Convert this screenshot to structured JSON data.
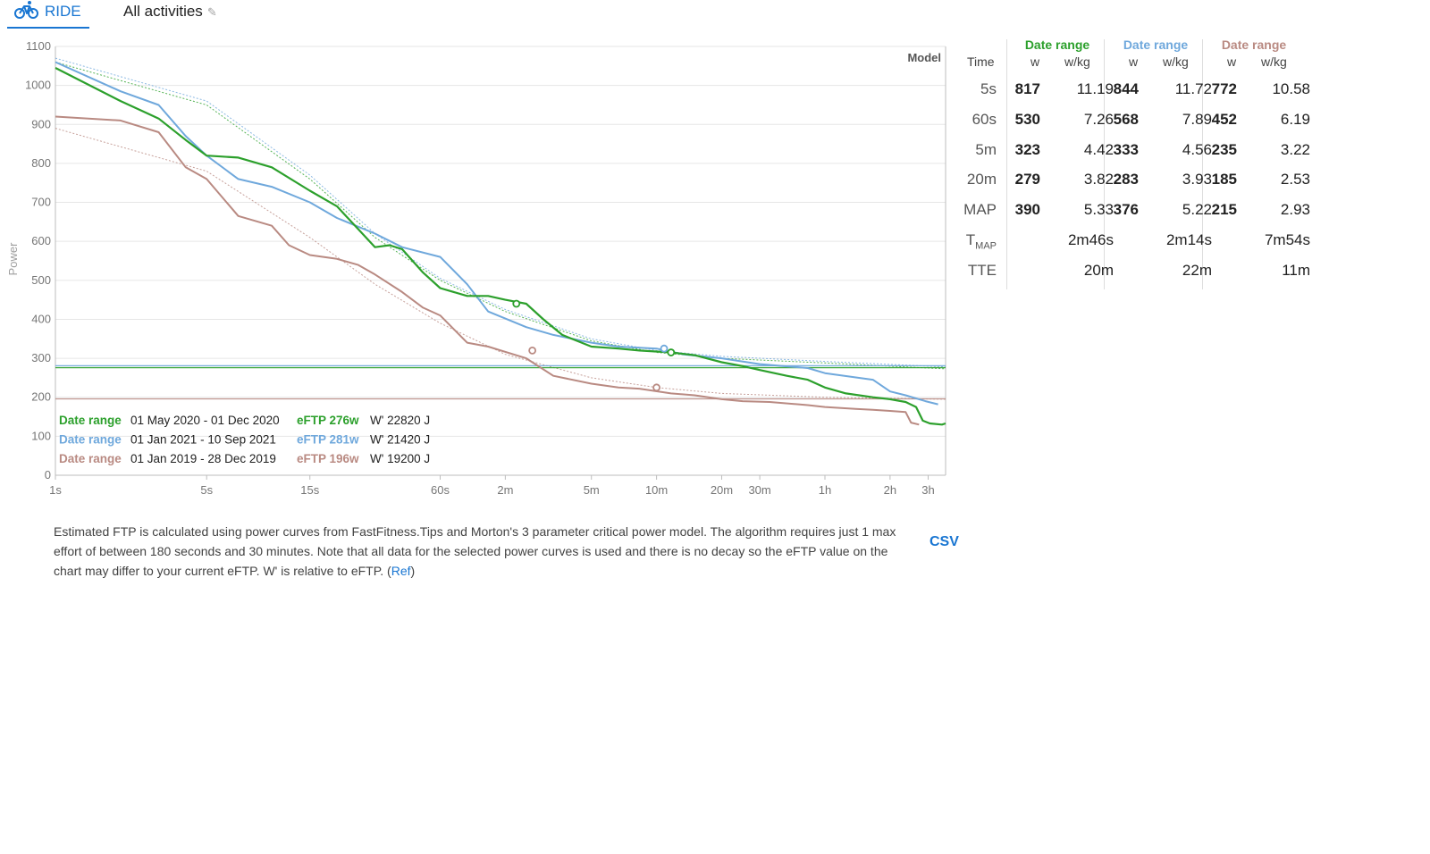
{
  "tabs": {
    "ride_label": "RIDE",
    "activities_label": "All activities"
  },
  "colors": {
    "series1": "#2ca02c",
    "series2": "#6fa8dc",
    "series3": "#b98a82",
    "accent": "#1976d2"
  },
  "chart_data": {
    "type": "line",
    "ylabel": "Power",
    "ylim": [
      0,
      1100
    ],
    "y_ticks": [
      0,
      100,
      200,
      300,
      400,
      500,
      600,
      700,
      800,
      900,
      1000,
      1100
    ],
    "x_scale": "log",
    "x_unit": "seconds",
    "xlim": [
      1,
      13000
    ],
    "x_ticks": [
      {
        "s": 1,
        "label": "1s"
      },
      {
        "s": 5,
        "label": "5s"
      },
      {
        "s": 15,
        "label": "15s"
      },
      {
        "s": 60,
        "label": "60s"
      },
      {
        "s": 120,
        "label": "2m"
      },
      {
        "s": 300,
        "label": "5m"
      },
      {
        "s": 600,
        "label": "10m"
      },
      {
        "s": 1200,
        "label": "20m"
      },
      {
        "s": 1800,
        "label": "30m"
      },
      {
        "s": 3600,
        "label": "1h"
      },
      {
        "s": 7200,
        "label": "2h"
      },
      {
        "s": 10800,
        "label": "3h"
      }
    ],
    "model_label": "Model",
    "series": [
      {
        "name": "Date range",
        "dates": "01 May 2020  - 01 Dec 2020",
        "eftp_label": "eFTP 276w",
        "w_prime_label": "W' 22820 J",
        "color": "#2ca02c",
        "eftp": 276,
        "points": [
          [
            1,
            1045
          ],
          [
            2,
            960
          ],
          [
            3,
            915
          ],
          [
            4,
            860
          ],
          [
            5,
            820
          ],
          [
            7,
            815
          ],
          [
            10,
            790
          ],
          [
            15,
            730
          ],
          [
            20,
            690
          ],
          [
            30,
            585
          ],
          [
            35,
            590
          ],
          [
            40,
            580
          ],
          [
            50,
            520
          ],
          [
            60,
            480
          ],
          [
            80,
            460
          ],
          [
            100,
            460
          ],
          [
            120,
            450
          ],
          [
            150,
            440
          ],
          [
            180,
            400
          ],
          [
            220,
            360
          ],
          [
            300,
            330
          ],
          [
            400,
            325
          ],
          [
            500,
            320
          ],
          [
            700,
            315
          ],
          [
            900,
            308
          ],
          [
            1200,
            290
          ],
          [
            1500,
            280
          ],
          [
            1800,
            270
          ],
          [
            2400,
            255
          ],
          [
            3000,
            245
          ],
          [
            3600,
            225
          ],
          [
            4500,
            210
          ],
          [
            6000,
            200
          ],
          [
            7200,
            195
          ],
          [
            8500,
            188
          ],
          [
            9500,
            175
          ],
          [
            10200,
            140
          ],
          [
            11000,
            133
          ],
          [
            12500,
            130
          ],
          [
            13000,
            133
          ]
        ],
        "marker_points": [
          [
            135,
            440
          ],
          [
            700,
            315
          ]
        ],
        "model_points": [
          [
            1,
            1060
          ],
          [
            5,
            950
          ],
          [
            15,
            760
          ],
          [
            30,
            610
          ],
          [
            60,
            500
          ],
          [
            120,
            420
          ],
          [
            300,
            345
          ],
          [
            600,
            315
          ],
          [
            1200,
            300
          ],
          [
            3600,
            288
          ],
          [
            13000,
            273
          ]
        ]
      },
      {
        "name": "Date range",
        "dates": "01 Jan 2021  - 10 Sep 2021",
        "eftp_label": "eFTP 281w",
        "w_prime_label": "W' 21420 J",
        "color": "#6fa8dc",
        "eftp": 281,
        "points": [
          [
            1,
            1060
          ],
          [
            2,
            985
          ],
          [
            3,
            950
          ],
          [
            4,
            870
          ],
          [
            5,
            820
          ],
          [
            7,
            760
          ],
          [
            10,
            740
          ],
          [
            15,
            700
          ],
          [
            20,
            660
          ],
          [
            30,
            620
          ],
          [
            40,
            585
          ],
          [
            60,
            560
          ],
          [
            80,
            490
          ],
          [
            100,
            420
          ],
          [
            150,
            380
          ],
          [
            200,
            360
          ],
          [
            300,
            340
          ],
          [
            400,
            330
          ],
          [
            600,
            325
          ],
          [
            800,
            310
          ],
          [
            1200,
            300
          ],
          [
            1800,
            285
          ],
          [
            3000,
            275
          ],
          [
            3600,
            262
          ],
          [
            6000,
            245
          ],
          [
            7200,
            215
          ],
          [
            8500,
            205
          ],
          [
            10500,
            190
          ],
          [
            12000,
            182
          ]
        ],
        "marker_points": [
          [
            650,
            325
          ]
        ],
        "model_points": [
          [
            1,
            1070
          ],
          [
            5,
            960
          ],
          [
            15,
            770
          ],
          [
            30,
            620
          ],
          [
            60,
            505
          ],
          [
            120,
            425
          ],
          [
            300,
            350
          ],
          [
            600,
            320
          ],
          [
            1200,
            305
          ],
          [
            3600,
            292
          ],
          [
            13000,
            278
          ]
        ]
      },
      {
        "name": "Date range",
        "dates": "01 Jan 2019  - 28 Dec 2019",
        "eftp_label": "eFTP 196w",
        "w_prime_label": "W' 19200 J",
        "color": "#b98a82",
        "eftp": 196,
        "points": [
          [
            1,
            920
          ],
          [
            2,
            910
          ],
          [
            3,
            880
          ],
          [
            4,
            790
          ],
          [
            5,
            760
          ],
          [
            7,
            665
          ],
          [
            10,
            640
          ],
          [
            12,
            590
          ],
          [
            15,
            565
          ],
          [
            20,
            555
          ],
          [
            25,
            540
          ],
          [
            30,
            515
          ],
          [
            40,
            470
          ],
          [
            50,
            430
          ],
          [
            60,
            410
          ],
          [
            80,
            340
          ],
          [
            100,
            330
          ],
          [
            150,
            300
          ],
          [
            200,
            255
          ],
          [
            300,
            235
          ],
          [
            400,
            225
          ],
          [
            500,
            222
          ],
          [
            700,
            210
          ],
          [
            900,
            205
          ],
          [
            1200,
            195
          ],
          [
            1500,
            190
          ],
          [
            2000,
            188
          ],
          [
            3000,
            180
          ],
          [
            3600,
            175
          ],
          [
            5000,
            170
          ],
          [
            6000,
            168
          ],
          [
            7200,
            165
          ],
          [
            8500,
            162
          ],
          [
            9000,
            135
          ],
          [
            9800,
            130
          ]
        ],
        "marker_points": [
          [
            160,
            320
          ],
          [
            600,
            225
          ]
        ],
        "model_points": [
          [
            1,
            890
          ],
          [
            5,
            780
          ],
          [
            15,
            610
          ],
          [
            30,
            490
          ],
          [
            60,
            390
          ],
          [
            120,
            310
          ],
          [
            300,
            250
          ],
          [
            600,
            225
          ],
          [
            1200,
            210
          ],
          [
            3600,
            200
          ],
          [
            13000,
            195
          ]
        ]
      }
    ]
  },
  "table": {
    "time_header": "Time",
    "w_header": "w",
    "wkg_header": "w/kg",
    "column_titles": [
      "Date range",
      "Date range",
      "Date range"
    ],
    "rows": [
      {
        "label": "5s",
        "vals": [
          [
            "817",
            "11.19"
          ],
          [
            "844",
            "11.72"
          ],
          [
            "772",
            "10.58"
          ]
        ]
      },
      {
        "label": "60s",
        "vals": [
          [
            "530",
            "7.26"
          ],
          [
            "568",
            "7.89"
          ],
          [
            "452",
            "6.19"
          ]
        ]
      },
      {
        "label": "5m",
        "vals": [
          [
            "323",
            "4.42"
          ],
          [
            "333",
            "4.56"
          ],
          [
            "235",
            "3.22"
          ]
        ]
      },
      {
        "label": "20m",
        "vals": [
          [
            "279",
            "3.82"
          ],
          [
            "283",
            "3.93"
          ],
          [
            "185",
            "2.53"
          ]
        ]
      },
      {
        "label": "MAP",
        "vals": [
          [
            "390",
            "5.33"
          ],
          [
            "376",
            "5.22"
          ],
          [
            "215",
            "2.93"
          ]
        ]
      }
    ],
    "tmap_label_main": "T",
    "tmap_label_sub": "MAP",
    "tmap_vals": [
      "2m46s",
      "2m14s",
      "7m54s"
    ],
    "tte_label": "TTE",
    "tte_vals": [
      "20m",
      "22m",
      "11m"
    ]
  },
  "description": {
    "text": "Estimated FTP is calculated using power curves from FastFitness.Tips and Morton's 3 parameter critical power model. The algorithm requires just 1 max effort of between 180 seconds and 30 minutes. Note that all data for the selected power curves is used and there is no decay so the eFTP value on the chart may differ to your current eFTP. W' is relative to eFTP. (",
    "ref_label": "Ref",
    "close_paren": ")",
    "csv_label": "CSV"
  }
}
